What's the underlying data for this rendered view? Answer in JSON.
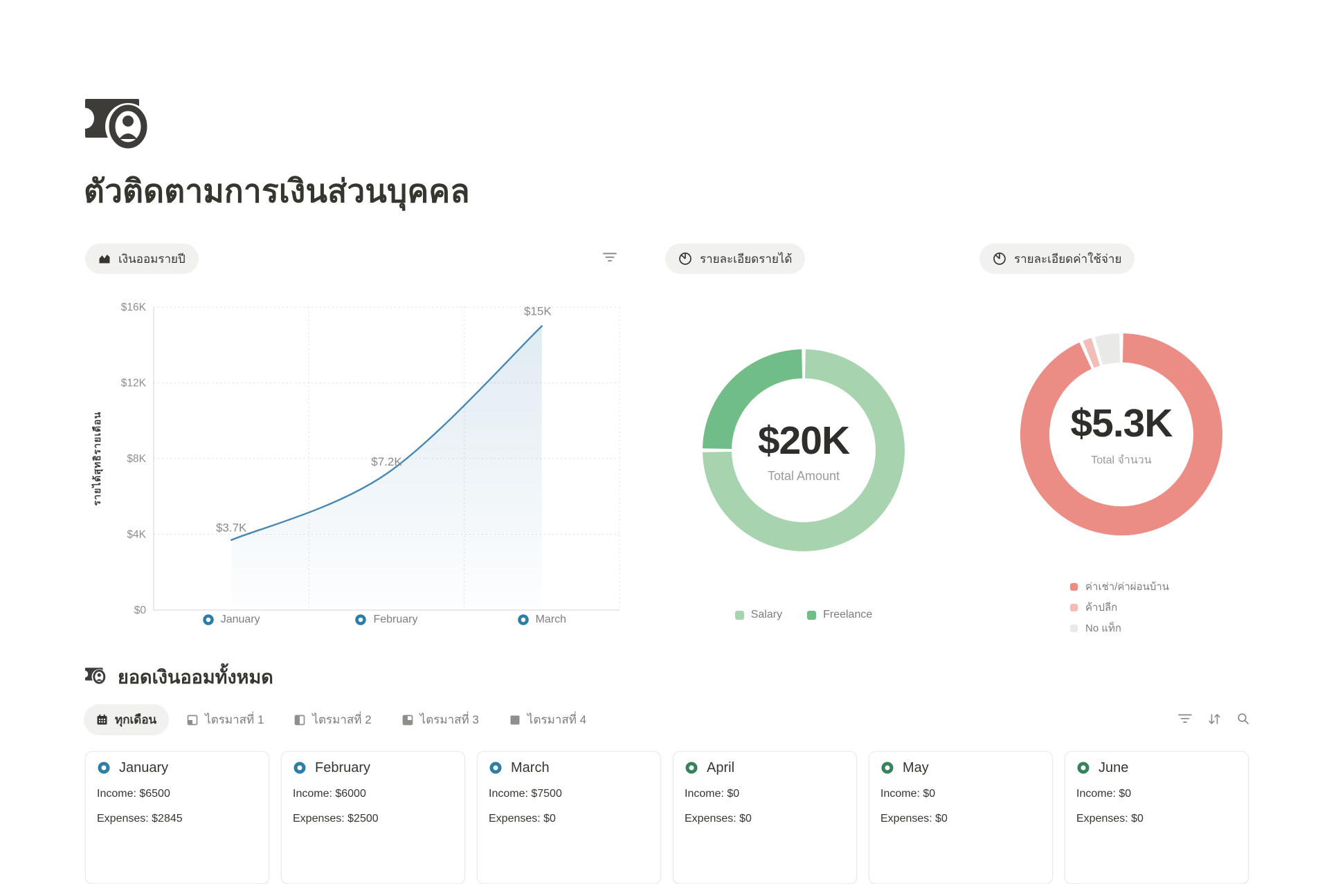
{
  "page": {
    "title": "ตัวติดตามการเงินส่วนบุคคล"
  },
  "views": {
    "savings_badge": "เงินออมรายปี",
    "income_badge": "รายละเอียดรายได้",
    "expense_badge": "รายละเอียดค่าใช้จ่าย"
  },
  "chart_data": [
    {
      "type": "line",
      "title": "เงินออมรายปี",
      "categories": [
        "January",
        "February",
        "March"
      ],
      "values": [
        3700,
        7200,
        15000
      ],
      "point_labels": [
        "$3.7K",
        "$7.2K",
        "$15K"
      ],
      "ylabel": "รายได้สุทธิรายเดือน",
      "ylim": [
        0,
        16000
      ],
      "yticks": [
        "$16K",
        "$12K",
        "$8K",
        "$4K",
        "$0"
      ],
      "grid": "dotted",
      "line_color": "#4688b3",
      "marker_color": "#2d7ea6",
      "legend_position": "bottom-axis"
    },
    {
      "type": "donut",
      "title": "รายละเอียดรายได้",
      "center_value": "$20K",
      "center_label": "Total Amount",
      "slices": [
        {
          "name": "Salary",
          "pct": 75,
          "color": "#a8d3af"
        },
        {
          "name": "Freelance",
          "pct": 25,
          "color": "#70bd88"
        }
      ],
      "legend_position": "bottom"
    },
    {
      "type": "donut",
      "title": "รายละเอียดค่าใช้จ่าย",
      "center_value": "$5.3K",
      "center_label": "Total จำนวน",
      "slices": [
        {
          "name": "ค่าเช่า/ค่าผ่อนบ้าน",
          "pct": 93.5,
          "color": "#eb8d84"
        },
        {
          "name": "ค้าปลีก",
          "pct": 2,
          "color": "#f3bcb6"
        },
        {
          "name": "No แท็ก",
          "pct": 4.5,
          "color": "#e9e9e7"
        }
      ],
      "legend_position": "bottom"
    }
  ],
  "board": {
    "title": "ยอดเงินออมทั้งหมด",
    "tabs": [
      {
        "label": "ทุกเดือน",
        "icon": "calendar-icon",
        "active": true
      },
      {
        "label": "ไตรมาสที่ 1",
        "icon": "quarter-1-icon",
        "active": false
      },
      {
        "label": "ไตรมาสที่ 2",
        "icon": "quarter-2-icon",
        "active": false
      },
      {
        "label": "ไตรมาสที่ 3",
        "icon": "quarter-3-icon",
        "active": false
      },
      {
        "label": "ไตรมาสที่ 4",
        "icon": "quarter-4-icon",
        "active": false
      }
    ],
    "tools": [
      "filter-icon",
      "sort-icon",
      "search-icon"
    ],
    "cards": [
      {
        "month": "January",
        "income": "Income: $6500",
        "expenses": "Expenses: $2845",
        "icon_color": "#2d7ea6"
      },
      {
        "month": "February",
        "income": "Income: $6000",
        "expenses": "Expenses: $2500",
        "icon_color": "#2d7ea6"
      },
      {
        "month": "March",
        "income": "Income: $7500",
        "expenses": "Expenses: $0",
        "icon_color": "#2d7ea6"
      },
      {
        "month": "April",
        "income": "Income: $0",
        "expenses": "Expenses: $0",
        "icon_color": "#35825e"
      },
      {
        "month": "May",
        "income": "Income: $0",
        "expenses": "Expenses: $0",
        "icon_color": "#35825e"
      },
      {
        "month": "June",
        "income": "Income: $0",
        "expenses": "Expenses: $0",
        "icon_color": "#35825e"
      }
    ]
  },
  "colors": {
    "text": "#37352f",
    "muted": "#7f7e7b",
    "badge_bg": "#f1f1ef",
    "line_blue": "#4688b3",
    "salary_green": "#a8d3af",
    "freelance_green": "#70bd88",
    "expense_salmon": "#eb8d84",
    "expense_pink": "#f3bcb6",
    "expense_gray": "#e9e9e7"
  }
}
